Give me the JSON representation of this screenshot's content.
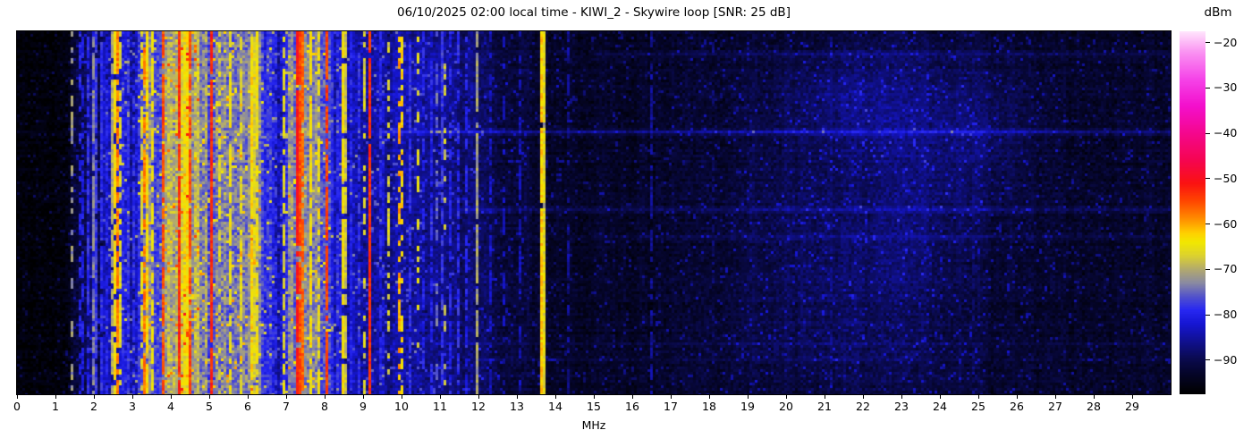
{
  "title": "06/10/2025 02:00 local time - KIWI_2 - Skywire loop [SNR: 25 dB]",
  "x_axis": {
    "label": "MHz",
    "min": 0,
    "max": 30,
    "ticks": [
      0,
      1,
      2,
      3,
      4,
      5,
      6,
      7,
      8,
      9,
      10,
      11,
      12,
      13,
      14,
      15,
      16,
      17,
      18,
      19,
      20,
      21,
      22,
      23,
      24,
      25,
      26,
      27,
      28,
      29
    ]
  },
  "colorbar": {
    "label": "dBm",
    "vmin": -97.5,
    "vmax": -17.5,
    "ticks": [
      -20,
      -30,
      -40,
      -50,
      -60,
      -70,
      -80,
      -90
    ],
    "tick_labels": [
      "−20",
      "−30",
      "−40",
      "−50",
      "−60",
      "−70",
      "−80",
      "−90"
    ]
  },
  "chart_data": {
    "type": "heatmap",
    "title": "06/10/2025 02:00 local time - KIWI_2 - Skywire loop [SNR: 25 dB]",
    "xlabel": "MHz",
    "x_range": [
      0,
      30
    ],
    "value_unit": "dBm",
    "value_range": [
      -97.5,
      -17.5
    ],
    "seed": 20250610,
    "colormap_stops": [
      [
        -97.5,
        "#000000"
      ],
      [
        -93,
        "#05052a"
      ],
      [
        -90,
        "#0a0a4c"
      ],
      [
        -86,
        "#10108e"
      ],
      [
        -82,
        "#1616d4"
      ],
      [
        -79,
        "#2828f2"
      ],
      [
        -76,
        "#5353cb"
      ],
      [
        -73,
        "#8a8aa2"
      ],
      [
        -70,
        "#b2aa6e"
      ],
      [
        -67,
        "#dcd22f"
      ],
      [
        -64,
        "#f2e800"
      ],
      [
        -62,
        "#ffd000"
      ],
      [
        -59,
        "#ff9000"
      ],
      [
        -55,
        "#ff4700"
      ],
      [
        -51,
        "#fa1212"
      ],
      [
        -46,
        "#f50550"
      ],
      [
        -40,
        "#f4078d"
      ],
      [
        -34,
        "#f30fcc"
      ],
      [
        -28,
        "#f544e8"
      ],
      [
        -22,
        "#fa93f2"
      ],
      [
        -17.5,
        "#ffe4fc"
      ]
    ],
    "noise_floor_profile": [
      [
        0,
        -96.5
      ],
      [
        1.2,
        -96
      ],
      [
        1.5,
        -93
      ],
      [
        1.7,
        -89
      ],
      [
        2.0,
        -87
      ],
      [
        2.3,
        -86
      ],
      [
        2.5,
        -82
      ],
      [
        2.8,
        -83
      ],
      [
        3.1,
        -80
      ],
      [
        3.4,
        -76
      ],
      [
        3.7,
        -73
      ],
      [
        4.0,
        -71
      ],
      [
        4.4,
        -70
      ],
      [
        4.8,
        -72
      ],
      [
        5.1,
        -75
      ],
      [
        5.4,
        -76
      ],
      [
        5.8,
        -74
      ],
      [
        6.1,
        -73
      ],
      [
        6.5,
        -79
      ],
      [
        6.8,
        -80
      ],
      [
        7.1,
        -76
      ],
      [
        7.35,
        -72
      ],
      [
        7.7,
        -74
      ],
      [
        8.0,
        -77
      ],
      [
        8.3,
        -81
      ],
      [
        8.7,
        -84
      ],
      [
        9.2,
        -85
      ],
      [
        9.7,
        -85
      ],
      [
        10.3,
        -86
      ],
      [
        11.0,
        -86
      ],
      [
        11.6,
        -88
      ],
      [
        12.2,
        -90
      ],
      [
        12.8,
        -92
      ],
      [
        13.4,
        -91.5
      ],
      [
        14.0,
        -93
      ],
      [
        15.0,
        -93.5
      ],
      [
        16.0,
        -93.5
      ],
      [
        17.5,
        -93
      ],
      [
        19.0,
        -92.5
      ],
      [
        20.5,
        -92
      ],
      [
        22.0,
        -91
      ],
      [
        23.5,
        -91
      ],
      [
        25.0,
        -92
      ],
      [
        26.5,
        -92.5
      ],
      [
        28.0,
        -93
      ],
      [
        30,
        -93
      ]
    ],
    "stripe_strength_profile": [
      [
        0,
        0.8
      ],
      [
        1.4,
        1.5
      ],
      [
        1.9,
        3
      ],
      [
        2.4,
        5
      ],
      [
        2.8,
        6
      ],
      [
        3.2,
        7
      ],
      [
        3.6,
        8
      ],
      [
        4.2,
        8
      ],
      [
        5.0,
        8
      ],
      [
        6.0,
        8
      ],
      [
        7.0,
        8
      ],
      [
        8.0,
        7
      ],
      [
        8.6,
        4
      ],
      [
        9.5,
        3.5
      ],
      [
        10.5,
        3
      ],
      [
        11.5,
        2.5
      ],
      [
        12.5,
        1.8
      ],
      [
        13.5,
        1.5
      ],
      [
        15,
        1.2
      ],
      [
        18,
        1.2
      ],
      [
        21,
        1.5
      ],
      [
        24,
        1.4
      ],
      [
        30,
        1.2
      ]
    ],
    "cell_noise_profile": [
      [
        0,
        2.2
      ],
      [
        1.5,
        3
      ],
      [
        2.5,
        4.5
      ],
      [
        4,
        5
      ],
      [
        6,
        5
      ],
      [
        8,
        4.5
      ],
      [
        9,
        4
      ],
      [
        11,
        3.5
      ],
      [
        13,
        3
      ],
      [
        15,
        2.8
      ],
      [
        19,
        3
      ],
      [
        22,
        3.2
      ],
      [
        26,
        3
      ],
      [
        30,
        2.8
      ]
    ],
    "vertical_lines": [
      {
        "f": 1.45,
        "level": -72,
        "duty": 0.45,
        "w": 1
      },
      {
        "f": 2.0,
        "level": -73,
        "duty": 0.8,
        "w": 1
      },
      {
        "f": 2.45,
        "level": -70,
        "duty": 0.85,
        "w": 1
      },
      {
        "f": 4.9,
        "level": -70,
        "duty": 0.6,
        "w": 1
      },
      {
        "f": 10.9,
        "level": -75,
        "duty": 0.45,
        "w": 1
      },
      {
        "f": 11.97,
        "level": -71,
        "duty": 0.9,
        "w": 1
      },
      {
        "f": 13.72,
        "level": -72,
        "duty": 0.85,
        "w": 1
      },
      {
        "f": 1.63,
        "level": -80,
        "duty": 0.55,
        "w": 1
      },
      {
        "f": 1.74,
        "level": -81,
        "duty": 0.65,
        "w": 1
      },
      {
        "f": 1.85,
        "level": -79,
        "duty": 0.8,
        "w": 1
      },
      {
        "f": 1.96,
        "level": -81,
        "duty": 0.55,
        "w": 1
      },
      {
        "f": 2.08,
        "level": -78,
        "duty": 0.9,
        "w": 1
      },
      {
        "f": 2.2,
        "level": -79,
        "duty": 0.9,
        "w": 2
      },
      {
        "f": 2.33,
        "level": -80,
        "duty": 0.75,
        "w": 1
      },
      {
        "f": 2.9,
        "level": -78,
        "duty": 0.85,
        "w": 1
      },
      {
        "f": 3.05,
        "level": -79,
        "duty": 0.7,
        "w": 1
      },
      {
        "f": 6.55,
        "level": -78,
        "duty": 0.8,
        "w": 1
      },
      {
        "f": 6.7,
        "level": -79,
        "duty": 0.7,
        "w": 1
      },
      {
        "f": 8.35,
        "level": -79,
        "duty": 0.85,
        "w": 1
      },
      {
        "f": 8.68,
        "level": -80,
        "duty": 0.7,
        "w": 1
      },
      {
        "f": 8.9,
        "level": -79,
        "duty": 0.75,
        "w": 1
      },
      {
        "f": 9.45,
        "level": -80,
        "duty": 0.75,
        "w": 1
      },
      {
        "f": 9.55,
        "level": -81,
        "duty": 0.6,
        "w": 1
      },
      {
        "f": 10.25,
        "level": -79,
        "duty": 0.75,
        "w": 1
      },
      {
        "f": 10.55,
        "level": -80,
        "duty": 0.65,
        "w": 1
      },
      {
        "f": 10.75,
        "level": -80,
        "duty": 0.6,
        "w": 1
      },
      {
        "f": 11.05,
        "level": -78,
        "duty": 0.75,
        "w": 1
      },
      {
        "f": 11.25,
        "level": -80,
        "duty": 0.55,
        "w": 1
      },
      {
        "f": 11.5,
        "level": -79,
        "duty": 0.65,
        "w": 1
      },
      {
        "f": 11.7,
        "level": -80,
        "duty": 0.55,
        "w": 1
      },
      {
        "f": 12.3,
        "level": -83,
        "duty": 0.55,
        "w": 1
      },
      {
        "f": 12.63,
        "level": -84,
        "duty": 0.5,
        "w": 1
      },
      {
        "f": 13.05,
        "level": -84,
        "duty": 0.5,
        "w": 1
      },
      {
        "f": 14.35,
        "level": -86,
        "duty": 0.5,
        "w": 1
      },
      {
        "f": 16.5,
        "level": -86,
        "duty": 0.7,
        "w": 1
      },
      {
        "f": 18.1,
        "level": -88,
        "duty": 0.4,
        "w": 1
      },
      {
        "f": 21.2,
        "level": -87,
        "duty": 0.4,
        "w": 1
      },
      {
        "f": 24.9,
        "level": -88,
        "duty": 0.35,
        "w": 1
      },
      {
        "f": 2.56,
        "level": -64,
        "duty": 0.9,
        "w": 1
      },
      {
        "f": 2.68,
        "level": -66,
        "duty": 0.65,
        "w": 1
      },
      {
        "f": 3.22,
        "level": -66,
        "duty": 0.7,
        "w": 1
      },
      {
        "f": 3.35,
        "level": -63,
        "duty": 0.8,
        "w": 1
      },
      {
        "f": 3.5,
        "level": -65,
        "duty": 0.7,
        "w": 1
      },
      {
        "f": 5.3,
        "level": -66,
        "duty": 0.6,
        "w": 1
      },
      {
        "f": 5.55,
        "level": -65,
        "duty": 0.75,
        "w": 1
      },
      {
        "f": 5.85,
        "level": -66,
        "duty": 0.65,
        "w": 1
      },
      {
        "f": 6.08,
        "level": -63,
        "duty": 0.9,
        "w": 2
      },
      {
        "f": 6.25,
        "level": -65,
        "duty": 0.75,
        "w": 1
      },
      {
        "f": 6.95,
        "level": -66,
        "duty": 0.6,
        "w": 1
      },
      {
        "f": 7.62,
        "level": -64,
        "duty": 0.8,
        "w": 1
      },
      {
        "f": 7.87,
        "level": -65,
        "duty": 0.65,
        "w": 1
      },
      {
        "f": 8.5,
        "level": -64,
        "duty": 0.85,
        "w": 2
      },
      {
        "f": 9.0,
        "level": -67,
        "duty": 0.5,
        "w": 1
      },
      {
        "f": 9.68,
        "level": -67,
        "duty": 0.4,
        "w": 1
      },
      {
        "f": 10.02,
        "level": -63,
        "duty": 0.5,
        "w": 1
      },
      {
        "f": 10.42,
        "level": -66,
        "duty": 0.35,
        "w": 1
      },
      {
        "f": 11.12,
        "level": -68,
        "duty": 0.3,
        "w": 1
      },
      {
        "f": 13.62,
        "level": -62,
        "duty": 0.97,
        "w": 2
      },
      {
        "f": 2.6,
        "level": -58,
        "duty": 0.75,
        "w": 1
      },
      {
        "f": 3.3,
        "level": -58,
        "duty": 0.6,
        "w": 1
      },
      {
        "f": 3.79,
        "level": -55,
        "duty": 0.9,
        "w": 1
      },
      {
        "f": 4.23,
        "level": -53,
        "duty": 0.95,
        "w": 1
      },
      {
        "f": 4.47,
        "level": -55,
        "duty": 0.85,
        "w": 1
      },
      {
        "f": 5.05,
        "level": -53,
        "duty": 0.95,
        "w": 1
      },
      {
        "f": 7.3,
        "level": -51,
        "duty": 0.97,
        "w": 2
      },
      {
        "f": 7.44,
        "level": -57,
        "duty": 0.8,
        "w": 1
      },
      {
        "f": 8.08,
        "level": -54,
        "duty": 0.9,
        "w": 1
      },
      {
        "f": 9.18,
        "level": -53,
        "duty": 0.95,
        "w": 1
      },
      {
        "f": 9.95,
        "level": -60,
        "duty": 0.5,
        "w": 1
      }
    ],
    "horizontal_lines": [
      {
        "t": 0.272,
        "boost": 5,
        "f_min": 9.5
      },
      {
        "t": 0.272,
        "boost": 1.5,
        "f_min": 0
      },
      {
        "t": 0.488,
        "boost": 4,
        "f_min": 11.5
      },
      {
        "t": 0.06,
        "boost": 2.5,
        "f_min": 15
      },
      {
        "t": 0.56,
        "boost": 2,
        "f_min": 15
      },
      {
        "t": 0.86,
        "boost": 2.5,
        "f_min": 9
      },
      {
        "t": 0.905,
        "boost": 2,
        "f_min": 12
      }
    ],
    "bright_patches": [
      {
        "f": 21.8,
        "t": 0.18,
        "f_sigma": 1.8,
        "t_sigma": 0.13,
        "amp": 4
      },
      {
        "f": 23.4,
        "t": 0.33,
        "f_sigma": 2.0,
        "t_sigma": 0.18,
        "amp": 3.2
      },
      {
        "f": 22.8,
        "t": 0.6,
        "f_sigma": 2.2,
        "t_sigma": 0.15,
        "amp": 2.8
      },
      {
        "f": 20.2,
        "t": 0.47,
        "f_sigma": 1.5,
        "t_sigma": 0.28,
        "amp": 2.2
      },
      {
        "f": 25.2,
        "t": 0.26,
        "f_sigma": 1.2,
        "t_sigma": 0.18,
        "amp": 2.8
      },
      {
        "f": 10.6,
        "t": 0.12,
        "f_sigma": 1.3,
        "t_sigma": 0.1,
        "amp": 2.2
      },
      {
        "f": 21.0,
        "t": 0.82,
        "f_sigma": 2.5,
        "t_sigma": 0.18,
        "amp": 2.2
      }
    ]
  }
}
